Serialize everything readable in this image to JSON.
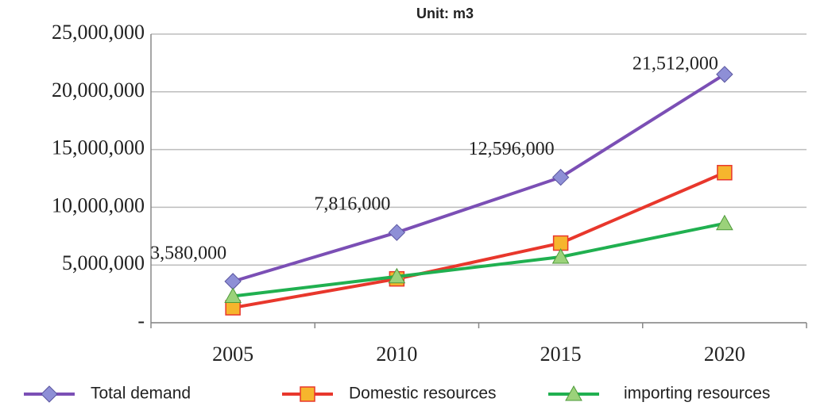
{
  "chart_data": {
    "type": "line",
    "title": "Unit: m3",
    "categories": [
      "2005",
      "2010",
      "2015",
      "2020"
    ],
    "series": [
      {
        "name": "Total demand",
        "color": "#7b4fb5",
        "marker": "diamond",
        "marker_color": "#8e8fd6",
        "values": [
          3580000,
          7816000,
          12596000,
          21512000
        ],
        "value_labels": [
          "3,580,000",
          "7,816,000",
          "12,596,000",
          "21,512,000"
        ]
      },
      {
        "name": "Domestic resources",
        "color": "#e8372c",
        "marker": "square",
        "marker_color": "#f6b52d",
        "values": [
          1300000,
          3800000,
          6900000,
          13000000
        ]
      },
      {
        "name": "importing resources",
        "color": "#20b050",
        "marker": "triangle",
        "marker_color": "#9bd27a",
        "values": [
          2300000,
          4000000,
          5700000,
          8600000
        ]
      }
    ],
    "ylim": [
      0,
      25000000
    ],
    "yticks": [
      {
        "value": 0,
        "label": "-"
      },
      {
        "value": 5000000,
        "label": "5,000,000"
      },
      {
        "value": 10000000,
        "label": "10,000,000"
      },
      {
        "value": 15000000,
        "label": "15,000,000"
      },
      {
        "value": 20000000,
        "label": "20,000,000"
      },
      {
        "value": 25000000,
        "label": "25,000,000"
      }
    ],
    "grid": true,
    "legend": "bottom"
  }
}
